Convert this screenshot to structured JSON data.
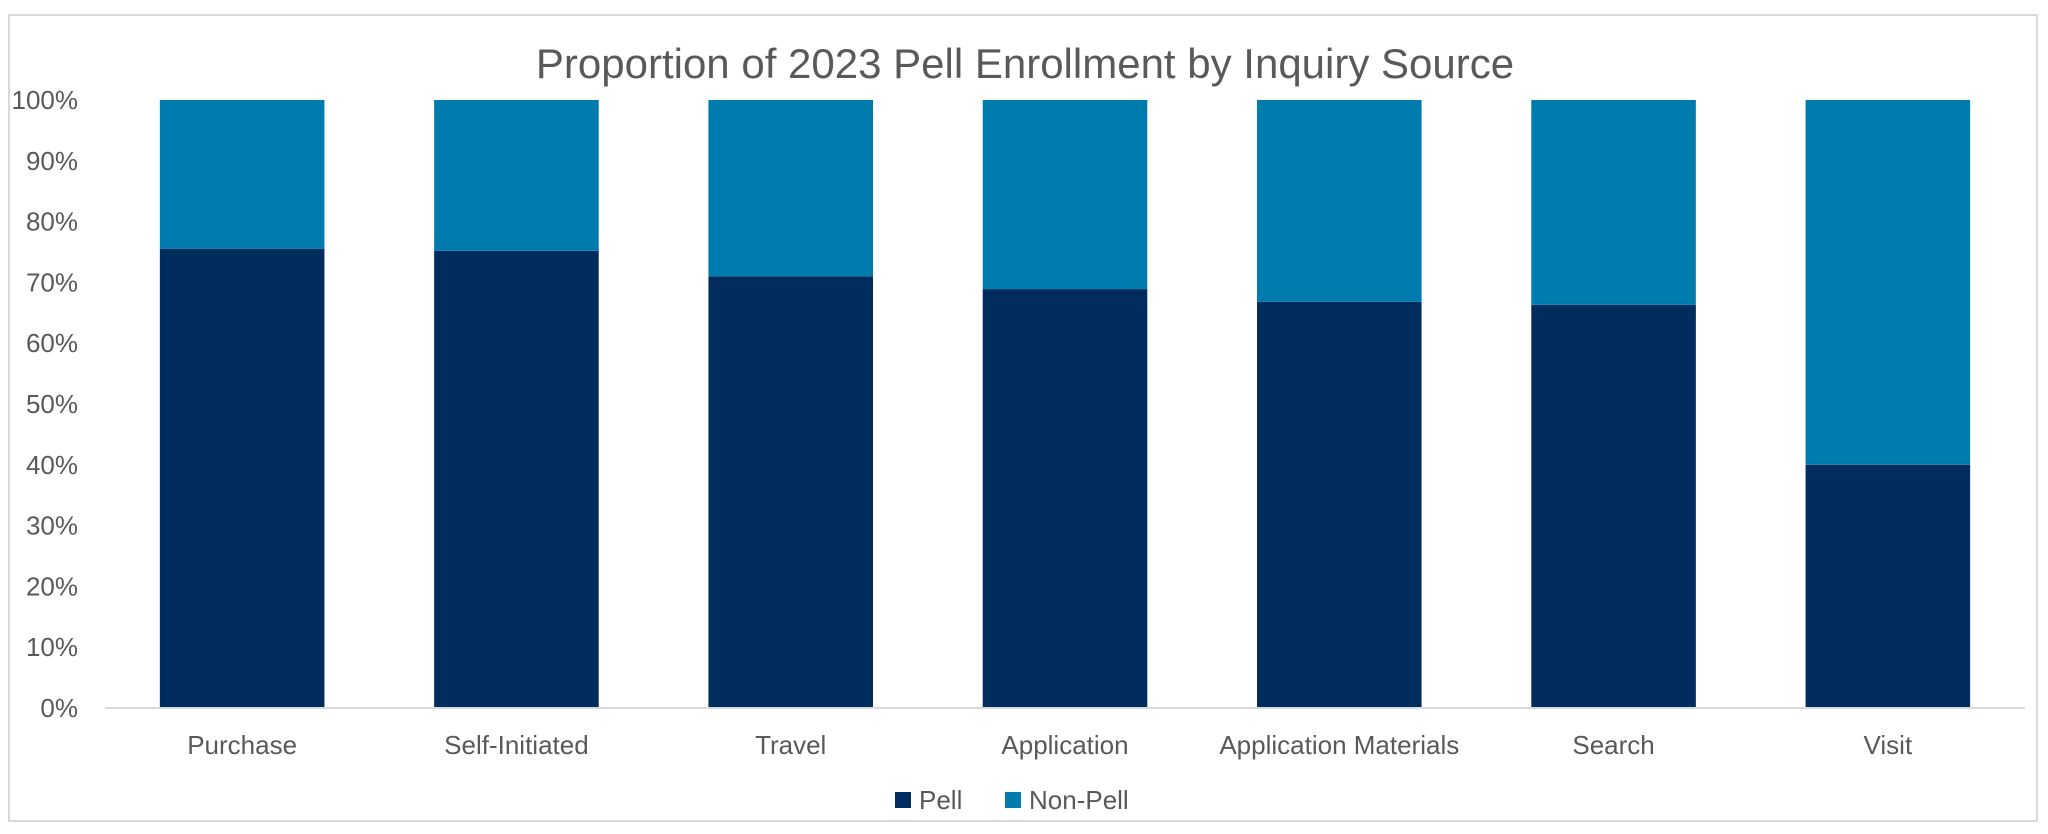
{
  "chart_data": {
    "type": "bar",
    "stacked": true,
    "title": "Proportion of 2023 Pell Enrollment by Inquiry Source",
    "categories": [
      "Purchase",
      "Self-Initiated",
      "Travel",
      "Application",
      "Application Materials",
      "Search",
      "Visit"
    ],
    "series": [
      {
        "name": "Pell",
        "color": "#002d5e",
        "values": [
          75.5,
          75.2,
          71.0,
          68.9,
          66.8,
          66.3,
          40.0
        ]
      },
      {
        "name": "Non-Pell",
        "color": "#007bad",
        "values": [
          24.5,
          24.8,
          29.0,
          31.1,
          33.2,
          33.7,
          60.0
        ]
      }
    ],
    "y_ticks": [
      "0%",
      "10%",
      "20%",
      "30%",
      "40%",
      "50%",
      "60%",
      "70%",
      "80%",
      "90%",
      "100%"
    ],
    "ylim": [
      0,
      100
    ],
    "grid": false,
    "legend_position": "bottom"
  }
}
